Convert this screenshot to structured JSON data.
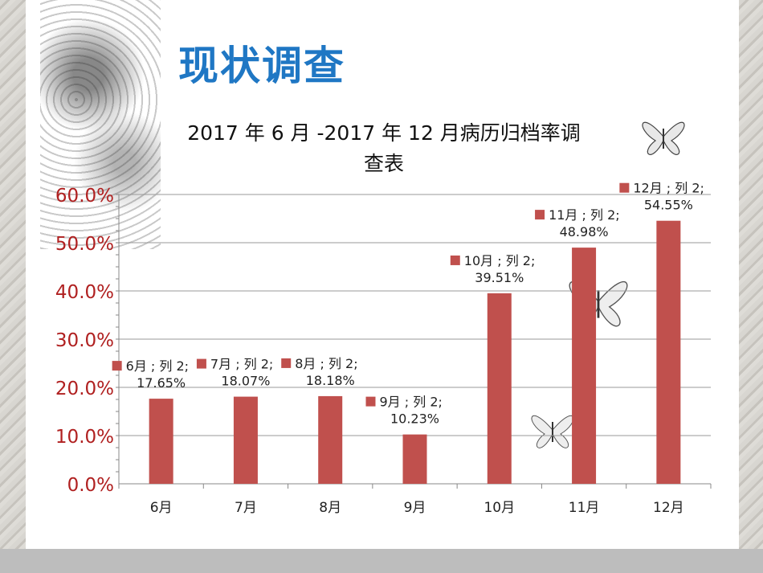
{
  "page": {
    "title": "现状调查"
  },
  "chart_data": {
    "type": "bar",
    "title_lines": [
      "2017 年 6 月 -2017 年 12 月病历归档率调",
      "查表"
    ],
    "categories": [
      "6月",
      "7月",
      "8月",
      "9月",
      "10月",
      "11月",
      "12月"
    ],
    "series": [
      {
        "name": "列 2",
        "values": [
          17.65,
          18.07,
          18.18,
          10.23,
          39.51,
          48.98,
          54.55
        ]
      }
    ],
    "data_labels": [
      [
        "6月 ; 列 2;",
        "17.65%"
      ],
      [
        "7月 ; 列 2;",
        "18.07%"
      ],
      [
        "8月 ; 列 2;",
        "18.18%"
      ],
      [
        "9月 ; 列 2;",
        "10.23%"
      ],
      [
        "10月 ; 列 2;",
        "39.51%"
      ],
      [
        "11月 ; 列 2;",
        "48.98%"
      ],
      [
        "12月 ; 列 2;",
        "54.55%"
      ]
    ],
    "yticks": [
      "0.0%",
      "10.0%",
      "20.0%",
      "30.0%",
      "40.0%",
      "50.0%",
      "60.0%"
    ],
    "ylim": [
      0,
      60
    ],
    "grid": true,
    "colors": {
      "bar": "#c0504d",
      "grid": "#9a9a9a",
      "ytick": "#b02020"
    }
  }
}
